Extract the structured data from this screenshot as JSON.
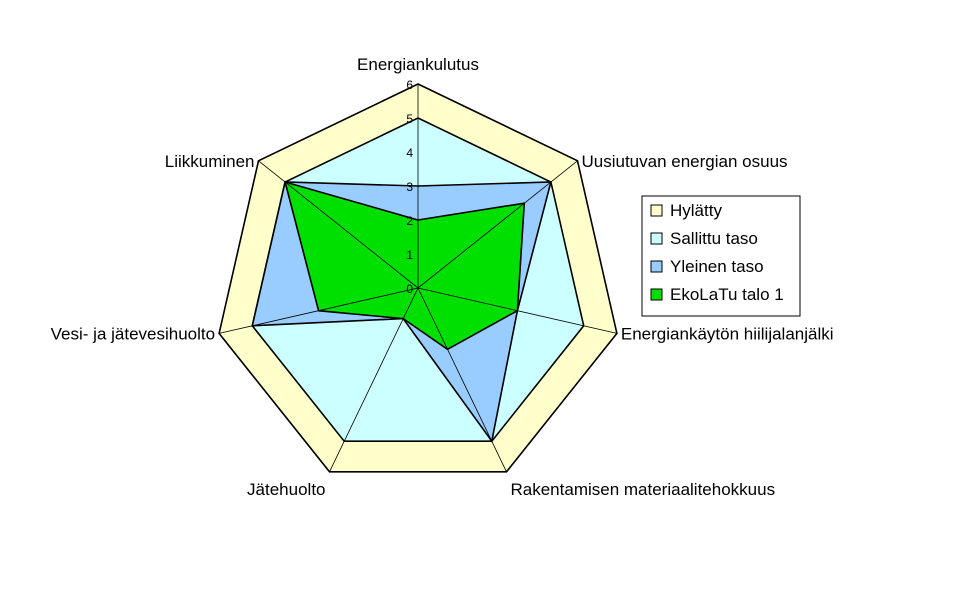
{
  "chart_data": {
    "type": "radar",
    "axes": [
      "Energiankulutus",
      "Uusiutuvan energian osuus",
      "Energiankäytön hiilijalanjälki",
      "Rakentamisen materiaalitehokkuus",
      "Jätehuolto",
      "Vesi- ja jätevesihuolto",
      "Liikkuminen"
    ],
    "ticks": [
      "0",
      "1",
      "2",
      "3",
      "4",
      "5",
      "6"
    ],
    "range": [
      0,
      6
    ],
    "legend_position": "right",
    "series": [
      {
        "name": "Hylätty",
        "color": "#ffffcc",
        "values": [
          6,
          6,
          6,
          6,
          6,
          6,
          6
        ]
      },
      {
        "name": "Sallittu taso",
        "color": "#ccffff",
        "values": [
          5,
          5,
          5,
          5,
          5,
          5,
          5
        ]
      },
      {
        "name": "Yleinen taso",
        "color": "#99ccff",
        "values": [
          3,
          5,
          3,
          5,
          1,
          5,
          5
        ]
      },
      {
        "name": "EkoLaTu talo 1",
        "color": "#00e000",
        "values": [
          2,
          4,
          3,
          2,
          1,
          3,
          5
        ]
      }
    ]
  }
}
